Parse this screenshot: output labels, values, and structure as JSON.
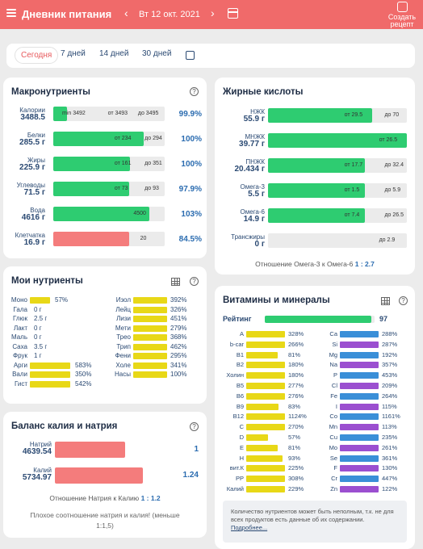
{
  "header": {
    "title": "Дневник питания",
    "date": "Вт 12 окт. 2021",
    "recipe_label_1": "Создать",
    "recipe_label_2": "рецепт",
    "bg": "#f06a6a"
  },
  "periods": [
    "Сегодня",
    "7 дней",
    "14 дней",
    "30 дней"
  ],
  "macros": {
    "title": "Макронутриенты",
    "rows": [
      {
        "name": "Калории",
        "value": "3488.5",
        "fill_pct": 0.12,
        "color": "#2ecc71",
        "labels": [
          "min 3492",
          "от 3493",
          "до 3495"
        ],
        "pct": "99.9%"
      },
      {
        "name": "Белки",
        "value": "285.5 г",
        "fill_pct": 0.81,
        "color": "#2ecc71",
        "labels": [
          "от 234",
          "до 294"
        ],
        "pct": "100%"
      },
      {
        "name": "Жиры",
        "value": "225.9 г",
        "fill_pct": 0.69,
        "color": "#2ecc71",
        "labels": [
          "от 161",
          "до 351"
        ],
        "pct": "100%"
      },
      {
        "name": "Углеводы",
        "value": "71.5 г",
        "fill_pct": 0.68,
        "color": "#2ecc71",
        "labels": [
          "от 73",
          "до 93"
        ],
        "pct": "97.9%"
      },
      {
        "name": "Вода",
        "value": "4616 г",
        "fill_pct": 0.86,
        "color": "#2ecc71",
        "labels": [
          "4500"
        ],
        "pct": "103%"
      },
      {
        "name": "Клетчатка",
        "value": "16.9 г",
        "fill_pct": 0.68,
        "color": "#f47c7c",
        "labels": [
          "20"
        ],
        "pct": "84.5%"
      }
    ]
  },
  "fats": {
    "title": "Жирные кислоты",
    "rows": [
      {
        "name": "НЖК",
        "value": "55.9 г",
        "fill_pct": 0.75,
        "labels": [
          "от 29.5",
          "до 70"
        ]
      },
      {
        "name": "МНЖК",
        "value": "39.77 г",
        "fill_pct": 1.0,
        "labels": [
          "от 26.5"
        ]
      },
      {
        "name": "ПНЖК",
        "value": "20.434 г",
        "fill_pct": 0.7,
        "labels": [
          "от 17.7",
          "до 32.4"
        ]
      },
      {
        "name": "Омега-3",
        "value": "5.5 г",
        "fill_pct": 0.7,
        "labels": [
          "от 1.5",
          "до 5.9"
        ]
      },
      {
        "name": "Омега-6",
        "value": "14.9 г",
        "fill_pct": 0.7,
        "labels": [
          "от 7.4",
          "до 26.5"
        ]
      },
      {
        "name": "Трансжиры",
        "value": "0 г",
        "fill_pct": 0,
        "labels": [
          "до 2.9"
        ]
      }
    ],
    "ratio_text": "Отношение Омега-3 к Омега-6",
    "ratio_value": "1 : 2.7"
  },
  "nutrients": {
    "title": "Мои нутриенты",
    "left": [
      {
        "name": "Моно",
        "value": "57%",
        "bar": 0.5,
        "color": "#e8d817"
      },
      {
        "name": "Гала",
        "value": "0 г",
        "bar": 0,
        "color": "#e8d817"
      },
      {
        "name": "Глюк",
        "value": "2.5 г",
        "bar": 0,
        "color": "#e8d817"
      },
      {
        "name": "Лакт",
        "value": "0 г",
        "bar": 0,
        "color": "#e8d817"
      },
      {
        "name": "Маль",
        "value": "0 г",
        "bar": 0,
        "color": "#e8d817"
      },
      {
        "name": "Саха",
        "value": "3.5 г",
        "bar": 0,
        "color": "#e8d817"
      },
      {
        "name": "Фрук",
        "value": "1 г",
        "bar": 0,
        "color": "#e8d817"
      },
      {
        "name": "Арги",
        "value": "583%",
        "bar": 1,
        "color": "#e8d817"
      },
      {
        "name": "Вали",
        "value": "350%",
        "bar": 1,
        "color": "#e8d817"
      },
      {
        "name": "Гист",
        "value": "542%",
        "bar": 1,
        "color": "#e8d817"
      }
    ],
    "right": [
      {
        "name": "Изол",
        "value": "392%"
      },
      {
        "name": "Лейц",
        "value": "326%"
      },
      {
        "name": "Лизи",
        "value": "451%"
      },
      {
        "name": "Мети",
        "value": "279%"
      },
      {
        "name": "Трео",
        "value": "368%"
      },
      {
        "name": "Трип",
        "value": "462%"
      },
      {
        "name": "Фени",
        "value": "295%"
      },
      {
        "name": "Холе",
        "value": "341%"
      },
      {
        "name": "Насы",
        "value": "100%"
      }
    ]
  },
  "balance": {
    "title": "Баланс калия и натрия",
    "rows": [
      {
        "name": "Натрий",
        "value": "4639.54",
        "fill_pct": 0.78,
        "num": "1"
      },
      {
        "name": "Калий",
        "value": "5734.97",
        "fill_pct": 0.97,
        "num": "1.24"
      }
    ],
    "ratio_text": "Отношение Натрия к Калию",
    "ratio_value": "1 : 1.2",
    "warning": "Плохое соотношение натрия и калия! (меньше 1:1,5)"
  },
  "vitamins": {
    "title": "Витамины и минералы",
    "rating_label": "Рейтинг",
    "rating_value": "97",
    "rating_pct": 0.97,
    "left": [
      {
        "n": "A",
        "v": "328%"
      },
      {
        "n": "b-car",
        "v": "266%"
      },
      {
        "n": "B1",
        "v": "81%"
      },
      {
        "n": "B2",
        "v": "180%"
      },
      {
        "n": "Холин",
        "v": "180%"
      },
      {
        "n": "B5",
        "v": "277%"
      },
      {
        "n": "B6",
        "v": "276%"
      },
      {
        "n": "B9",
        "v": "83%"
      },
      {
        "n": "B12",
        "v": "1124%"
      },
      {
        "n": "C",
        "v": "270%"
      },
      {
        "n": "D",
        "v": "57%"
      },
      {
        "n": "E",
        "v": "81%"
      },
      {
        "n": "H",
        "v": "93%"
      },
      {
        "n": "вит.К",
        "v": "225%"
      },
      {
        "n": "PP",
        "v": "308%"
      },
      {
        "n": "Калий",
        "v": "229%"
      }
    ],
    "right": [
      {
        "n": "Ca",
        "v": "288%"
      },
      {
        "n": "Si",
        "v": "287%"
      },
      {
        "n": "Mg",
        "v": "192%"
      },
      {
        "n": "Na",
        "v": "357%"
      },
      {
        "n": "P",
        "v": "453%"
      },
      {
        "n": "Cl",
        "v": "209%"
      },
      {
        "n": "Fe",
        "v": "264%"
      },
      {
        "n": "I",
        "v": "115%"
      },
      {
        "n": "Co",
        "v": "1161%"
      },
      {
        "n": "Mn",
        "v": "113%"
      },
      {
        "n": "Cu",
        "v": "235%"
      },
      {
        "n": "Mo",
        "v": "261%"
      },
      {
        "n": "Se",
        "v": "361%"
      },
      {
        "n": "F",
        "v": "130%"
      },
      {
        "n": "Cr",
        "v": "447%"
      },
      {
        "n": "Zn",
        "v": "122%"
      }
    ],
    "note": "Количество нутриентов может быть неполным, т.к. не для всех продуктов есть данные об их содержании.",
    "note_link": "Подробнее..."
  }
}
